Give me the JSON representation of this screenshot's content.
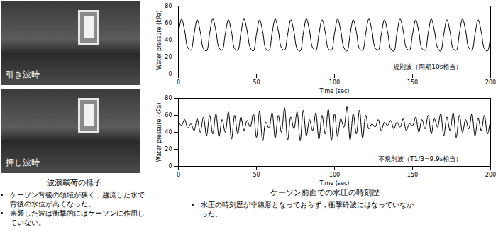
{
  "panels": {
    "left": {
      "photos": [
        {
          "label": "引き波時"
        },
        {
          "label": "押し波時"
        }
      ],
      "caption": "波浪載荷の様子",
      "notes": [
        "ケーソン背後の領域が狭く，越流した水で背後の水位が高くなった。",
        "来襲した波は衝撃的にはケーソンに作用していない。"
      ]
    },
    "right": {
      "caption": "ケーソン前面での水圧の時刻歴",
      "notes": [
        "水圧の時刻歴が非線形となっておらず，衝撃砕波にはなっていなかった。"
      ]
    }
  },
  "chart_data": [
    {
      "type": "line",
      "xlabel": "Time (sec)",
      "ylabel": "Water pressure (kPa)",
      "annotation": "規則波（周期10s相当）",
      "color": "#000000",
      "grid": false,
      "xlim": [
        0,
        200
      ],
      "ylim": [
        0,
        80
      ],
      "xticks": [
        0,
        50,
        100,
        150,
        200
      ],
      "yticks": [
        0,
        20,
        40,
        60,
        80
      ],
      "x": [
        0,
        2,
        4,
        6,
        8,
        10,
        12,
        14,
        16,
        18,
        20,
        22,
        24,
        26,
        28,
        30,
        32,
        34,
        36,
        38,
        40,
        42,
        44,
        46,
        48,
        50,
        52,
        54,
        56,
        58,
        60,
        62,
        64,
        66,
        68,
        70,
        72,
        74,
        76,
        78,
        80,
        82,
        84,
        86,
        88,
        90,
        92,
        94,
        96,
        98,
        100,
        102,
        104,
        106,
        108,
        110,
        112,
        114,
        116,
        118,
        120,
        122,
        124,
        126,
        128,
        130,
        132,
        134,
        136,
        138,
        140,
        142,
        144,
        146,
        148,
        150,
        152,
        154,
        156,
        158,
        160,
        162,
        164,
        166,
        168,
        170,
        172,
        174,
        176,
        178,
        180,
        182,
        184,
        186,
        188,
        190,
        192,
        194,
        196,
        198,
        200
      ],
      "values": [
        48,
        65,
        51,
        31,
        28,
        47,
        64,
        50,
        30,
        27,
        48,
        65,
        51,
        31,
        28,
        47,
        64,
        50,
        30,
        28,
        48,
        65,
        51,
        31,
        27,
        47,
        64,
        50,
        30,
        28,
        48,
        65,
        51,
        31,
        28,
        47,
        64,
        50,
        30,
        27,
        48,
        65,
        51,
        31,
        28,
        47,
        64,
        50,
        30,
        28,
        48,
        65,
        51,
        31,
        27,
        47,
        64,
        50,
        30,
        28,
        48,
        65,
        51,
        31,
        28,
        47,
        64,
        50,
        30,
        27,
        48,
        65,
        51,
        31,
        28,
        47,
        64,
        50,
        30,
        28,
        48,
        65,
        51,
        31,
        27,
        47,
        64,
        50,
        30,
        28,
        48,
        65,
        51,
        31,
        28,
        47,
        64,
        50,
        30,
        27,
        48
      ]
    },
    {
      "type": "line",
      "xlabel": "Time (sec)",
      "ylabel": "Water pressure (kPa)",
      "annotation": "不規則波（T1/3=9.9s相当）",
      "color": "#000000",
      "grid": false,
      "xlim": [
        0,
        200
      ],
      "ylim": [
        0,
        80
      ],
      "xticks": [
        0,
        50,
        100,
        150,
        200
      ],
      "yticks": [
        0,
        20,
        40,
        60,
        80
      ],
      "x": [
        0,
        2,
        4,
        6,
        8,
        10,
        12,
        14,
        16,
        18,
        20,
        22,
        24,
        26,
        28,
        30,
        32,
        34,
        36,
        38,
        40,
        42,
        44,
        46,
        48,
        50,
        52,
        54,
        56,
        58,
        60,
        62,
        64,
        66,
        68,
        70,
        72,
        74,
        76,
        78,
        80,
        82,
        84,
        86,
        88,
        90,
        92,
        94,
        96,
        98,
        100,
        102,
        104,
        106,
        108,
        110,
        112,
        114,
        116,
        118,
        120,
        122,
        124,
        126,
        128,
        130,
        132,
        134,
        136,
        138,
        140,
        142,
        144,
        146,
        148,
        150,
        152,
        154,
        156,
        158,
        160,
        162,
        164,
        166,
        168,
        170,
        172,
        174,
        176,
        178,
        180,
        182,
        184,
        186,
        188,
        190,
        192,
        194,
        196,
        198,
        200
      ],
      "values": [
        52,
        48,
        55,
        45,
        50,
        42,
        56,
        40,
        58,
        36,
        60,
        38,
        62,
        35,
        55,
        40,
        64,
        32,
        60,
        38,
        58,
        42,
        54,
        46,
        62,
        34,
        65,
        30,
        52,
        45,
        63,
        33,
        60,
        40,
        69,
        31,
        58,
        44,
        64,
        30,
        66,
        36,
        55,
        42,
        63,
        32,
        60,
        38,
        67,
        30,
        62,
        35,
        56,
        46,
        70,
        31,
        62,
        38,
        66,
        33,
        60,
        44,
        50,
        46,
        55,
        42,
        52,
        48,
        54,
        44,
        52,
        46,
        56,
        42,
        50,
        48,
        58,
        40,
        55,
        44,
        60,
        38,
        56,
        46,
        62,
        36,
        58,
        42,
        63,
        34,
        60,
        40,
        55,
        44,
        62,
        36,
        57,
        42,
        60,
        38,
        56
      ]
    }
  ]
}
